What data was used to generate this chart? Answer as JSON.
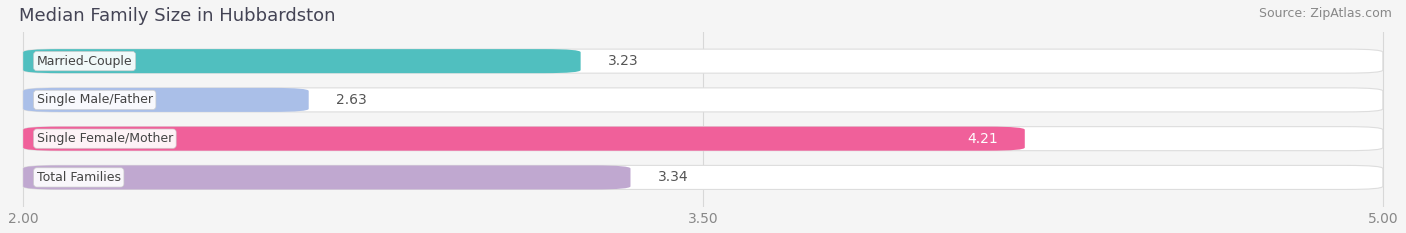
{
  "title": "Median Family Size in Hubbardston",
  "source": "Source: ZipAtlas.com",
  "categories": [
    "Married-Couple",
    "Single Male/Father",
    "Single Female/Mother",
    "Total Families"
  ],
  "values": [
    3.23,
    2.63,
    4.21,
    3.34
  ],
  "bar_colors": [
    "#50bfbf",
    "#aabfe8",
    "#f0609a",
    "#c0a8d0"
  ],
  "bar_bg_color": "#ffffff",
  "bar_bg_edge_color": "#dddddd",
  "xlim": [
    2.0,
    5.0
  ],
  "xticks": [
    2.0,
    3.5,
    5.0
  ],
  "xtick_labels": [
    "2.00",
    "3.50",
    "5.00"
  ],
  "label_outside_color": "#555555",
  "label_inside_color": "#ffffff",
  "label_inside_threshold": 4.0,
  "bar_height": 0.62,
  "background_color": "#f5f5f5",
  "title_fontsize": 13,
  "source_fontsize": 9,
  "label_fontsize": 10,
  "tick_fontsize": 10,
  "category_fontsize": 9,
  "category_label_color": "#444444"
}
